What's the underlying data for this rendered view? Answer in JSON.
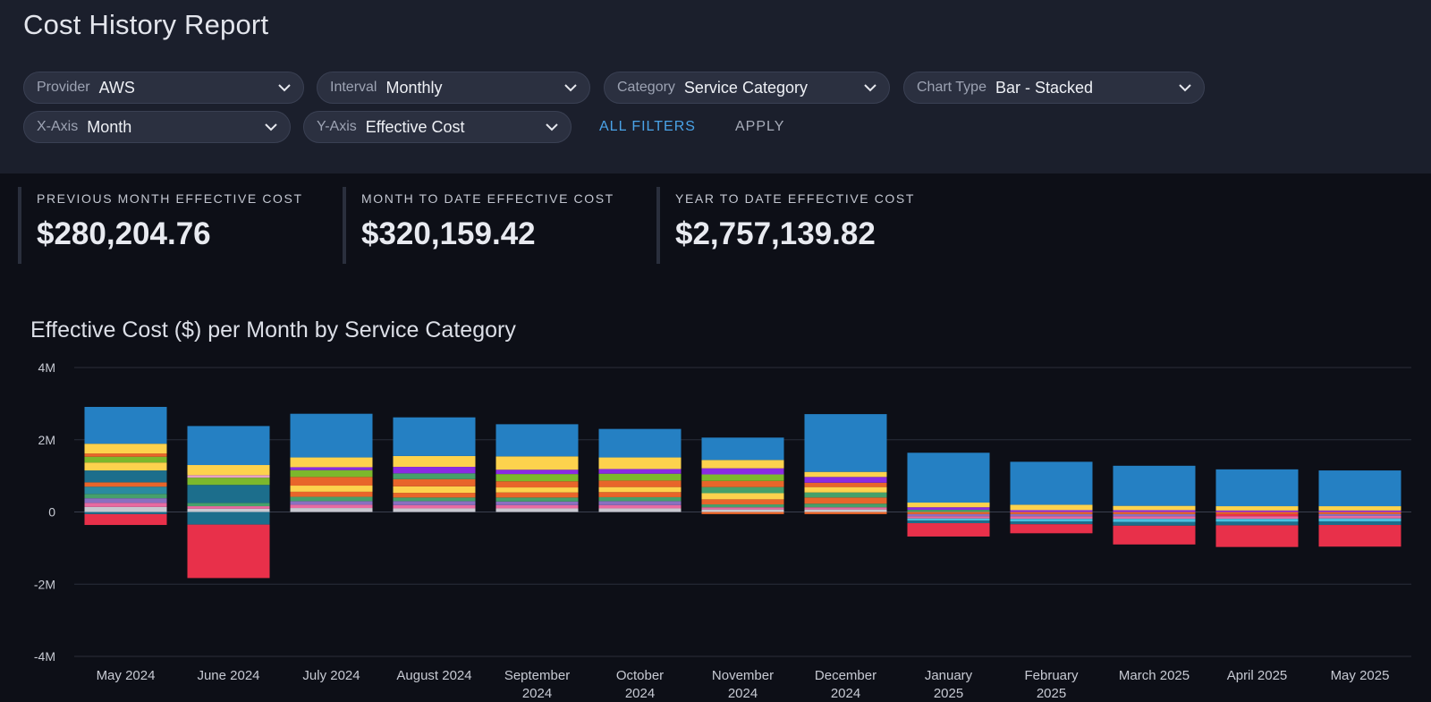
{
  "page": {
    "title": "Cost History Report"
  },
  "filters": [
    {
      "id": "provider",
      "label": "Provider",
      "value": "AWS"
    },
    {
      "id": "interval",
      "label": "Interval",
      "value": "Monthly"
    },
    {
      "id": "category",
      "label": "Category",
      "value": "Service Category"
    },
    {
      "id": "chart_type",
      "label": "Chart Type",
      "value": "Bar - Stacked"
    },
    {
      "id": "x_axis",
      "label": "X-Axis",
      "value": "Month"
    },
    {
      "id": "y_axis",
      "label": "Y-Axis",
      "value": "Effective Cost"
    }
  ],
  "actions": {
    "all_filters": "ALL FILTERS",
    "apply": "APPLY"
  },
  "kpis": [
    {
      "label": "PREVIOUS MONTH EFFECTIVE COST",
      "value": "$280,204.76"
    },
    {
      "label": "MONTH TO DATE EFFECTIVE COST",
      "value": "$320,159.42"
    },
    {
      "label": "YEAR TO DATE EFFECTIVE COST",
      "value": "$2,757,139.82"
    }
  ],
  "colors": {
    "accent": "#4aa3e8",
    "blue": "#2580c3",
    "red": "#e8304a",
    "yellow": "#fdd24d",
    "green": "#7cb82c",
    "purple": "#8a2be2",
    "orange": "#e8652a",
    "teal": "#1c6e8c"
  },
  "chart_data": {
    "type": "bar",
    "stacked": true,
    "title": "Effective Cost ($) per Month by Service Category",
    "xlabel": "",
    "ylabel": "",
    "ylim": [
      -4000000,
      4000000
    ],
    "yticks": [
      {
        "value": 4000000,
        "label": "4M"
      },
      {
        "value": 2000000,
        "label": "2M"
      },
      {
        "value": 0,
        "label": "0"
      },
      {
        "value": -2000000,
        "label": "-2M"
      },
      {
        "value": -4000000,
        "label": "-4M"
      }
    ],
    "categories": [
      [
        "May 2024"
      ],
      [
        "June 2024"
      ],
      [
        "July 2024"
      ],
      [
        "August 2024"
      ],
      [
        "September",
        "2024"
      ],
      [
        "October",
        "2024"
      ],
      [
        "November",
        "2024"
      ],
      [
        "December",
        "2024"
      ],
      [
        "January",
        "2025"
      ],
      [
        "February",
        "2025"
      ],
      [
        "March 2025"
      ],
      [
        "April 2025"
      ],
      [
        "May 2025"
      ]
    ],
    "legend": "none",
    "grid": true,
    "series_note": "positive and negative stacks per month; values in dollars",
    "bars": [
      {
        "pos": [
          [
            140000,
            "#c8c8d0"
          ],
          [
            110000,
            "#e86aa0"
          ],
          [
            130000,
            "#8a6fc0"
          ],
          [
            120000,
            "#46a06a"
          ],
          [
            200000,
            "#2a8aa0"
          ],
          [
            120000,
            "#e8652a"
          ],
          [
            330000,
            "#1c6e8c"
          ],
          [
            220000,
            "#fdd24d"
          ],
          [
            160000,
            "#7cb82c"
          ],
          [
            90000,
            "#e8652a"
          ],
          [
            270000,
            "#fdd24d"
          ],
          [
            1020000,
            "#2580c3"
          ]
        ],
        "neg": [
          [
            60000,
            "#1c6e8c"
          ],
          [
            300000,
            "#e8304a"
          ]
        ]
      },
      {
        "pos": [
          [
            90000,
            "#c8c8d0"
          ],
          [
            70000,
            "#e86aa0"
          ],
          [
            90000,
            "#46a06a"
          ],
          [
            500000,
            "#1c6e8c"
          ],
          [
            200000,
            "#7cb82c"
          ],
          [
            70000,
            "#e8a0c8"
          ],
          [
            280000,
            "#fdd24d"
          ],
          [
            1080000,
            "#2580c3"
          ]
        ],
        "neg": [
          [
            350000,
            "#1c6e8c"
          ],
          [
            1480000,
            "#e8304a"
          ]
        ]
      },
      {
        "pos": [
          [
            110000,
            "#c8c8d0"
          ],
          [
            90000,
            "#e86aa0"
          ],
          [
            100000,
            "#8a6fc0"
          ],
          [
            120000,
            "#46a06a"
          ],
          [
            140000,
            "#e8652a"
          ],
          [
            170000,
            "#fdd24d"
          ],
          [
            240000,
            "#e8652a"
          ],
          [
            190000,
            "#7cb82c"
          ],
          [
            80000,
            "#8a2be2"
          ],
          [
            270000,
            "#fdd24d"
          ],
          [
            1210000,
            "#2580c3"
          ]
        ],
        "neg": []
      },
      {
        "pos": [
          [
            100000,
            "#c8c8d0"
          ],
          [
            90000,
            "#e86aa0"
          ],
          [
            110000,
            "#8a6fc0"
          ],
          [
            100000,
            "#46a06a"
          ],
          [
            130000,
            "#e8652a"
          ],
          [
            180000,
            "#fdd24d"
          ],
          [
            200000,
            "#e8652a"
          ],
          [
            160000,
            "#46a06a"
          ],
          [
            180000,
            "#8a2be2"
          ],
          [
            300000,
            "#fdd24d"
          ],
          [
            1070000,
            "#2580c3"
          ]
        ],
        "neg": []
      },
      {
        "pos": [
          [
            100000,
            "#c8c8d0"
          ],
          [
            90000,
            "#e86aa0"
          ],
          [
            100000,
            "#8a6fc0"
          ],
          [
            110000,
            "#46a06a"
          ],
          [
            140000,
            "#e8652a"
          ],
          [
            140000,
            "#fdd24d"
          ],
          [
            170000,
            "#e8652a"
          ],
          [
            200000,
            "#7cb82c"
          ],
          [
            120000,
            "#8a2be2"
          ],
          [
            370000,
            "#fdd24d"
          ],
          [
            890000,
            "#2580c3"
          ]
        ],
        "neg": []
      },
      {
        "pos": [
          [
            100000,
            "#c8c8d0"
          ],
          [
            90000,
            "#e86aa0"
          ],
          [
            110000,
            "#8a6fc0"
          ],
          [
            110000,
            "#46a06a"
          ],
          [
            140000,
            "#e8652a"
          ],
          [
            140000,
            "#fdd24d"
          ],
          [
            180000,
            "#e8652a"
          ],
          [
            190000,
            "#7cb82c"
          ],
          [
            130000,
            "#8a2be2"
          ],
          [
            320000,
            "#fdd24d"
          ],
          [
            790000,
            "#2580c3"
          ]
        ],
        "neg": []
      },
      {
        "pos": [
          [
            70000,
            "#c8c8d0"
          ],
          [
            60000,
            "#e86aa0"
          ],
          [
            80000,
            "#46a06a"
          ],
          [
            140000,
            "#e8652a"
          ],
          [
            170000,
            "#fdd24d"
          ],
          [
            170000,
            "#46a06a"
          ],
          [
            170000,
            "#e8652a"
          ],
          [
            180000,
            "#7cb82c"
          ],
          [
            170000,
            "#8a2be2"
          ],
          [
            230000,
            "#fdd24d"
          ],
          [
            620000,
            "#2580c3"
          ]
        ],
        "neg": [
          [
            60000,
            "#e8652a"
          ]
        ]
      },
      {
        "pos": [
          [
            70000,
            "#c8c8d0"
          ],
          [
            60000,
            "#e86aa0"
          ],
          [
            100000,
            "#46a06a"
          ],
          [
            170000,
            "#e8652a"
          ],
          [
            140000,
            "#46a06a"
          ],
          [
            150000,
            "#fdd24d"
          ],
          [
            120000,
            "#e8652a"
          ],
          [
            160000,
            "#8a2be2"
          ],
          [
            140000,
            "#fdd24d"
          ],
          [
            1600000,
            "#2580c3"
          ]
        ],
        "neg": [
          [
            60000,
            "#e8652a"
          ]
        ]
      },
      {
        "pos": [
          [
            60000,
            "#46a06a"
          ],
          [
            70000,
            "#8a2be2"
          ],
          [
            130000,
            "#fdd24d"
          ],
          [
            1380000,
            "#2580c3"
          ]
        ],
        "neg": [
          [
            60000,
            "#e8652a"
          ],
          [
            60000,
            "#8a6fc0"
          ],
          [
            60000,
            "#e86aa0"
          ],
          [
            60000,
            "#4ac0e0"
          ],
          [
            70000,
            "#1c6e8c"
          ],
          [
            370000,
            "#e8304a"
          ]
        ]
      },
      {
        "pos": [
          [
            50000,
            "#8a2be2"
          ],
          [
            150000,
            "#fdd24d"
          ],
          [
            1190000,
            "#2580c3"
          ]
        ],
        "neg": [
          [
            60000,
            "#e8652a"
          ],
          [
            60000,
            "#8a6fc0"
          ],
          [
            70000,
            "#e86aa0"
          ],
          [
            70000,
            "#4ac0e0"
          ],
          [
            80000,
            "#1c6e8c"
          ],
          [
            250000,
            "#e8304a"
          ]
        ]
      },
      {
        "pos": [
          [
            50000,
            "#8a2be2"
          ],
          [
            120000,
            "#fdd24d"
          ],
          [
            1110000,
            "#2580c3"
          ]
        ],
        "neg": [
          [
            60000,
            "#e8652a"
          ],
          [
            60000,
            "#8a6fc0"
          ],
          [
            70000,
            "#e86aa0"
          ],
          [
            90000,
            "#4ac0e0"
          ],
          [
            100000,
            "#1c6e8c"
          ],
          [
            520000,
            "#e8304a"
          ]
        ]
      },
      {
        "pos": [
          [
            40000,
            "#8a2be2"
          ],
          [
            120000,
            "#fdd24d"
          ],
          [
            1020000,
            "#2580c3"
          ]
        ],
        "neg": [
          [
            60000,
            "#e8652a"
          ],
          [
            60000,
            "#e8304a"
          ],
          [
            70000,
            "#e86aa0"
          ],
          [
            80000,
            "#4ac0e0"
          ],
          [
            100000,
            "#1c6e8c"
          ],
          [
            600000,
            "#e8304a"
          ]
        ]
      },
      {
        "pos": [
          [
            40000,
            "#8a2be2"
          ],
          [
            120000,
            "#fdd24d"
          ],
          [
            990000,
            "#2580c3"
          ]
        ],
        "neg": [
          [
            60000,
            "#e8652a"
          ],
          [
            50000,
            "#8a6fc0"
          ],
          [
            70000,
            "#e86aa0"
          ],
          [
            80000,
            "#4ac0e0"
          ],
          [
            100000,
            "#1c6e8c"
          ],
          [
            600000,
            "#e8304a"
          ]
        ]
      }
    ]
  }
}
